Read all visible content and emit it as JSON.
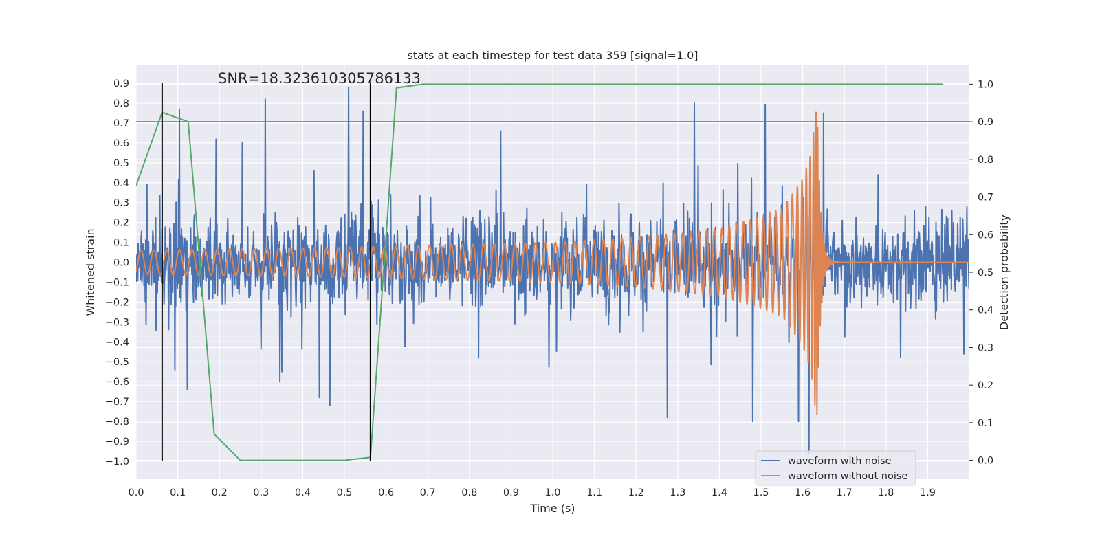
{
  "chart_data": {
    "type": "line",
    "title": "stats at each timestep for test data 359 [signal=1.0]",
    "xlabel": "Time (s)",
    "ylabel": "Whitened strain",
    "y2label": "Detection probability",
    "xlim": [
      0.0,
      2.0
    ],
    "ylim": [
      -1.09,
      0.99
    ],
    "y2lim": [
      -0.05,
      1.05
    ],
    "x_ticks": [
      "0.0",
      "0.1",
      "0.2",
      "0.3",
      "0.4",
      "0.5",
      "0.6",
      "0.7",
      "0.8",
      "0.9",
      "1.0",
      "1.1",
      "1.2",
      "1.3",
      "1.4",
      "1.5",
      "1.6",
      "1.7",
      "1.8",
      "1.9"
    ],
    "y_ticks": [
      "0.9",
      "0.8",
      "0.7",
      "0.6",
      "0.5",
      "0.4",
      "0.3",
      "0.2",
      "0.1",
      "0.0",
      "−0.1",
      "−0.2",
      "−0.3",
      "−0.4",
      "−0.5",
      "−0.6",
      "−0.7",
      "−0.8",
      "−0.9",
      "−1.0"
    ],
    "y2_ticks": [
      "1.0",
      "0.9",
      "0.8",
      "0.7",
      "0.6",
      "0.5",
      "0.4",
      "0.3",
      "0.2",
      "0.1",
      "0.0"
    ],
    "annotation": "SNR=18.323610305786133",
    "grid": true,
    "legend_position": "lower-right",
    "series": [
      {
        "name": "waveform with noise",
        "axis": "left",
        "color": "#4c72b0",
        "description": "noisy whitened strain, roughly ±0.4 with spikes up to about 0.9 and down to about −0.96",
        "spikes": [
          [
            0.104,
            0.77
          ],
          [
            0.255,
            0.6
          ],
          [
            0.31,
            0.82
          ],
          [
            0.345,
            -0.6
          ],
          [
            0.35,
            -0.55
          ],
          [
            0.44,
            -0.68
          ],
          [
            0.465,
            -0.72
          ],
          [
            0.51,
            0.88
          ],
          [
            0.545,
            0.76
          ],
          [
            0.875,
            0.66
          ],
          [
            1.275,
            -0.78
          ],
          [
            1.34,
            0.8
          ],
          [
            1.48,
            -0.8
          ],
          [
            1.51,
            0.79
          ],
          [
            1.59,
            -0.8
          ],
          [
            1.615,
            -0.96
          ],
          [
            1.65,
            0.75
          ]
        ]
      },
      {
        "name": "waveform without noise",
        "axis": "left",
        "color": "#dd8452",
        "description": "chirp signal, amplitude about 0.06 growing to peak near 0.77 at 1.635 s, then ringdown to 0",
        "merger_time": 1.635,
        "peak_amplitude": 0.77,
        "amplitude_x": [
          0.0,
          0.5,
          1.0,
          1.2,
          1.4,
          1.5,
          1.55,
          1.6,
          1.62,
          1.632
        ],
        "amplitude_y": [
          0.06,
          0.075,
          0.1,
          0.125,
          0.17,
          0.23,
          0.27,
          0.42,
          0.55,
          0.77
        ]
      },
      {
        "name": "detection probability",
        "axis": "right",
        "color": "#55a868",
        "x": [
          0.0,
          0.0625,
          0.125,
          0.1875,
          0.25,
          0.3125,
          0.375,
          0.4375,
          0.5,
          0.5625,
          0.625,
          0.6875,
          0.75,
          0.875,
          1.0,
          1.25,
          1.5,
          1.75,
          1.9375
        ],
        "y": [
          0.73,
          0.925,
          0.9,
          0.07,
          0.0,
          0.0,
          0.0,
          0.0,
          0.0,
          0.008,
          0.99,
          1.0,
          1.0,
          1.0,
          1.0,
          1.0,
          1.0,
          1.0,
          1.0
        ]
      }
    ],
    "reference_lines": [
      {
        "type": "horizontal",
        "axis": "right",
        "value": 0.9,
        "color": "#c44e52"
      },
      {
        "type": "vertical",
        "x": 0.0625,
        "ymin": -1.0,
        "ymax": 0.9,
        "color": "#000000"
      },
      {
        "type": "vertical",
        "x": 0.5625,
        "ymin": -1.0,
        "ymax": 0.9,
        "color": "#000000"
      }
    ]
  },
  "legend": {
    "items": [
      {
        "label": "waveform with noise",
        "color": "#4c72b0"
      },
      {
        "label": "waveform without noise",
        "color": "#dd8452"
      }
    ]
  }
}
